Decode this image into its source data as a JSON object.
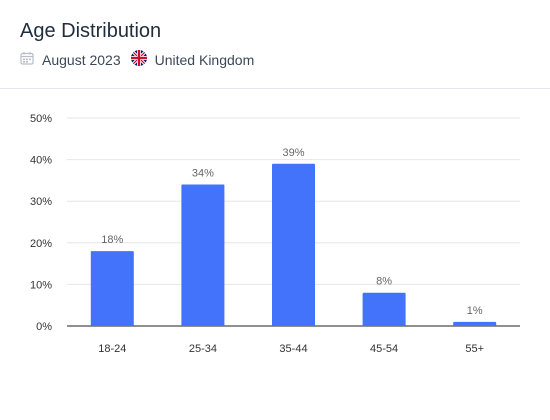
{
  "header": {
    "title": "Age Distribution",
    "date": "August 2023",
    "country": "United Kingdom",
    "calendar_icon": "calendar-icon",
    "flag_icon": "uk-flag-icon"
  },
  "colors": {
    "bar": "#4273fa",
    "grid": "#e6e6e6",
    "axis": "#222222",
    "label": "#666666",
    "tick": "#333333"
  },
  "chart_data": {
    "type": "bar",
    "categories": [
      "18-24",
      "25-34",
      "35-44",
      "45-54",
      "55+"
    ],
    "values": [
      18,
      34,
      39,
      8,
      1
    ],
    "data_labels": [
      "18%",
      "34%",
      "39%",
      "8%",
      "1%"
    ],
    "y_ticks": [
      "0%",
      "10%",
      "20%",
      "30%",
      "40%",
      "50%"
    ],
    "ylim": [
      0,
      50
    ],
    "grid": true,
    "title": "",
    "xlabel": "",
    "ylabel": ""
  }
}
